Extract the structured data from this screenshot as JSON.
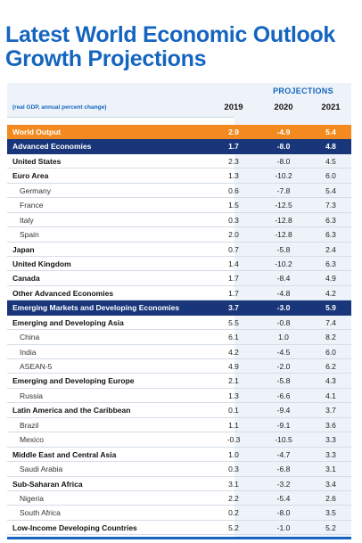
{
  "title": "Latest World Economic Outlook Growth Projections",
  "header": {
    "projections_label": "PROJECTIONS",
    "caption": "(real GDP, annual percent change)",
    "years": [
      "2019",
      "2020",
      "2021"
    ]
  },
  "colors": {
    "title": "#1565c0",
    "orange_band": "#f28a1f",
    "navy_band": "#19367a",
    "projection_shade": "#eef3f9"
  },
  "rows": [
    {
      "name": "World Output",
      "y2019": "2.9",
      "y2020": "-4.9",
      "y2021": "5.4",
      "style": "orange"
    },
    {
      "name": "Advanced Economies",
      "y2019": "1.7",
      "y2020": "-8.0",
      "y2021": "4.8",
      "style": "navy"
    },
    {
      "name": "United States",
      "y2019": "2.3",
      "y2020": "-8.0",
      "y2021": "4.5",
      "style": "bold"
    },
    {
      "name": "Euro Area",
      "y2019": "1.3",
      "y2020": "-10.2",
      "y2021": "6.0",
      "style": "bold"
    },
    {
      "name": "Germany",
      "y2019": "0.6",
      "y2020": "-7.8",
      "y2021": "5.4",
      "style": "sub"
    },
    {
      "name": "France",
      "y2019": "1.5",
      "y2020": "-12.5",
      "y2021": "7.3",
      "style": "sub"
    },
    {
      "name": "Italy",
      "y2019": "0.3",
      "y2020": "-12.8",
      "y2021": "6.3",
      "style": "sub"
    },
    {
      "name": "Spain",
      "y2019": "2.0",
      "y2020": "-12.8",
      "y2021": "6.3",
      "style": "sub"
    },
    {
      "name": "Japan",
      "y2019": "0.7",
      "y2020": "-5.8",
      "y2021": "2.4",
      "style": "bold"
    },
    {
      "name": "United Kingdom",
      "y2019": "1.4",
      "y2020": "-10.2",
      "y2021": "6.3",
      "style": "bold"
    },
    {
      "name": "Canada",
      "y2019": "1.7",
      "y2020": "-8.4",
      "y2021": "4.9",
      "style": "bold"
    },
    {
      "name": "Other Advanced Economies",
      "y2019": "1.7",
      "y2020": "-4.8",
      "y2021": "4.2",
      "style": "bold"
    },
    {
      "name": "Emerging Markets and Developing Economies",
      "y2019": "3.7",
      "y2020": "-3.0",
      "y2021": "5.9",
      "style": "navy"
    },
    {
      "name": "Emerging and Developing Asia",
      "y2019": "5.5",
      "y2020": "-0.8",
      "y2021": "7.4",
      "style": "bold"
    },
    {
      "name": "China",
      "y2019": "6.1",
      "y2020": "1.0",
      "y2021": "8.2",
      "style": "sub"
    },
    {
      "name": "India",
      "y2019": "4.2",
      "y2020": "-4.5",
      "y2021": "6.0",
      "style": "sub"
    },
    {
      "name": "ASEAN-5",
      "y2019": "4.9",
      "y2020": "-2.0",
      "y2021": "6.2",
      "style": "sub"
    },
    {
      "name": "Emerging and Developing Europe",
      "y2019": "2.1",
      "y2020": "-5.8",
      "y2021": "4.3",
      "style": "bold"
    },
    {
      "name": "Russia",
      "y2019": "1.3",
      "y2020": "-6.6",
      "y2021": "4.1",
      "style": "sub"
    },
    {
      "name": "Latin America and the Caribbean",
      "y2019": "0.1",
      "y2020": "-9.4",
      "y2021": "3.7",
      "style": "bold"
    },
    {
      "name": "Brazil",
      "y2019": "1.1",
      "y2020": "-9.1",
      "y2021": "3.6",
      "style": "sub"
    },
    {
      "name": "Mexico",
      "y2019": "-0.3",
      "y2020": "-10.5",
      "y2021": "3.3",
      "style": "sub"
    },
    {
      "name": "Middle East and Central Asia",
      "y2019": "1.0",
      "y2020": "-4.7",
      "y2021": "3.3",
      "style": "bold"
    },
    {
      "name": "Saudi Arabia",
      "y2019": "0.3",
      "y2020": "-6.8",
      "y2021": "3.1",
      "style": "sub"
    },
    {
      "name": "Sub-Saharan Africa",
      "y2019": "3.1",
      "y2020": "-3.2",
      "y2021": "3.4",
      "style": "bold"
    },
    {
      "name": "Nigeria",
      "y2019": "2.2",
      "y2020": "-5.4",
      "y2021": "2.6",
      "style": "sub"
    },
    {
      "name": "South Africa",
      "y2019": "0.2",
      "y2020": "-8.0",
      "y2021": "3.5",
      "style": "sub"
    },
    {
      "name": "Low-Income Developing Countries",
      "y2019": "5.2",
      "y2020": "-1.0",
      "y2021": "5.2",
      "style": "bold"
    }
  ]
}
